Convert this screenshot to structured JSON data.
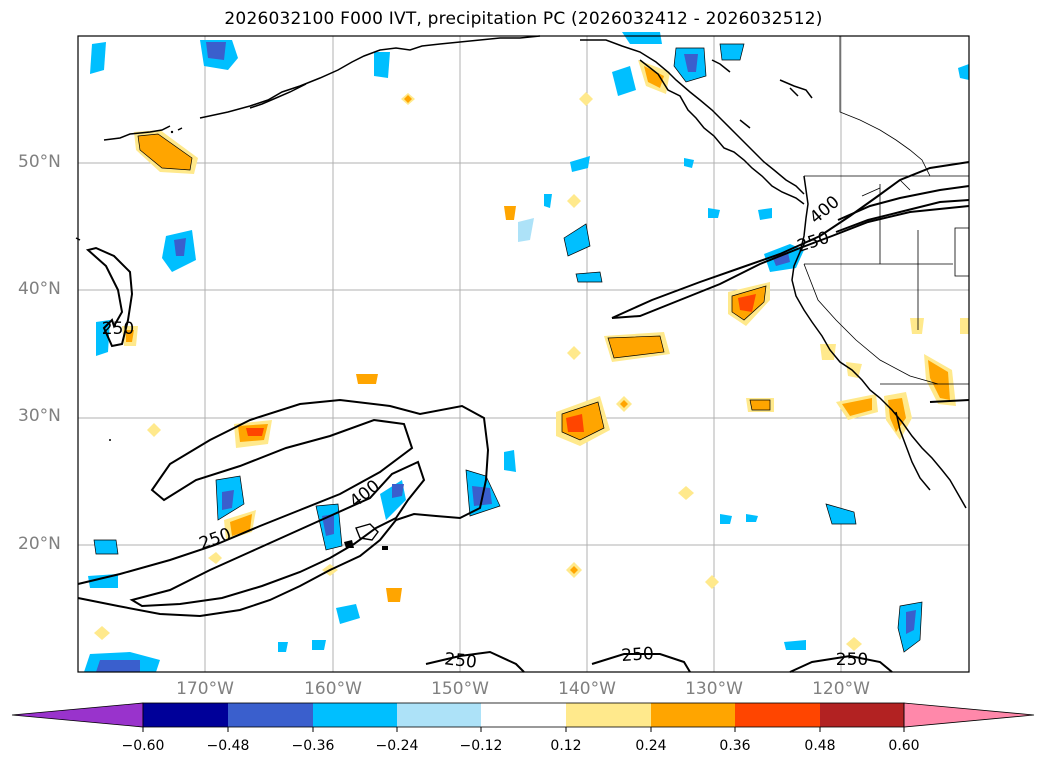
{
  "title": "2026032100 F000 IVT, precipitation PC (2026032412 - 2026032512)",
  "latitude_labels": [
    "50°N",
    "40°N",
    "30°N",
    "20°N"
  ],
  "longitude_labels": [
    "170°W",
    "160°W",
    "150°W",
    "140°W",
    "130°W",
    "120°W"
  ],
  "ivt_contour_labels": [
    "250",
    "400",
    "250",
    "400",
    "250",
    "250",
    "250",
    "250"
  ],
  "colorbar": {
    "tick_labels": [
      "−0.60",
      "−0.48",
      "−0.36",
      "−0.24",
      "−0.12",
      "0.12",
      "0.24",
      "0.36",
      "0.48",
      "0.60"
    ],
    "bins": [
      {
        "name": "below -0.60",
        "color": "#9933cc"
      },
      {
        "name": "-0.60 to -0.48",
        "color": "#000099"
      },
      {
        "name": "-0.48 to -0.36",
        "color": "#3a5fcd"
      },
      {
        "name": "-0.36 to -0.24",
        "color": "#00bfff"
      },
      {
        "name": "-0.24 to -0.12",
        "color": "#ade2f8"
      },
      {
        "name": "-0.12 to 0.12",
        "color": "#ffffff"
      },
      {
        "name": "0.12 to 0.24",
        "color": "#ffe98c"
      },
      {
        "name": "0.24 to 0.36",
        "color": "#ffa500"
      },
      {
        "name": "0.36 to 0.48",
        "color": "#ff4500"
      },
      {
        "name": "0.48 to 0.60",
        "color": "#b22222"
      },
      {
        "name": "above 0.60",
        "color": "#ff88aa"
      }
    ]
  }
}
